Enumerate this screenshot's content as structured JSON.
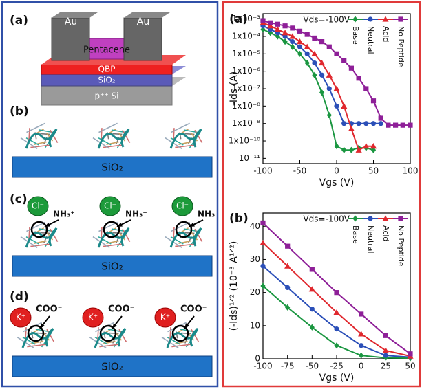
{
  "schematic": {
    "a": {
      "label": "(a)",
      "au_left": "Au",
      "au_right": "Au",
      "pentacene": "Pentacene",
      "qbp": "QBP",
      "sio2": "SiO₂",
      "si": "p⁺⁺ Si"
    },
    "b": {
      "label": "(b)",
      "sio2": "SiO₂"
    },
    "c": {
      "label": "(c)",
      "ions": [
        "Cl⁻",
        "Cl⁻",
        "Cl⁻"
      ],
      "groups": [
        "NH₃⁺",
        "NH₃⁺",
        "NH₃"
      ],
      "sio2": "SiO₂"
    },
    "d": {
      "label": "(d)",
      "ions": [
        "K⁺",
        "K⁺",
        "K⁺"
      ],
      "groups": [
        "COO⁻",
        "COO⁻",
        "COO⁻"
      ],
      "sio2": "SiO₂"
    }
  },
  "chart_data": [
    {
      "type": "line",
      "panel_label": "(a)",
      "annotation": "Vds=-100V",
      "xlabel": "Vgs (V)",
      "ylabel": "-Ids (A)",
      "ylog": true,
      "x": [
        -100,
        -90,
        -80,
        -70,
        -60,
        -50,
        -40,
        -30,
        -20,
        -10,
        0,
        10,
        20,
        30,
        40,
        50,
        60,
        70,
        80,
        90,
        100
      ],
      "xlim": [
        -100,
        100
      ],
      "xticks": [
        -100,
        -50,
        0,
        50,
        100
      ],
      "ylim": [
        5e-12,
        0.002
      ],
      "yticks": [
        {
          "value": 1e-11,
          "label": "10⁻¹¹"
        },
        {
          "value": 1e-10,
          "label": "1x10⁻¹⁰"
        },
        {
          "value": 1e-09,
          "label": "1x10⁻⁹"
        },
        {
          "value": 1e-08,
          "label": "1x10⁻⁸"
        },
        {
          "value": 1e-07,
          "label": "1x10⁻⁷"
        },
        {
          "value": 1e-06,
          "label": "1x10⁻⁶"
        },
        {
          "value": 1e-05,
          "label": "1x10⁻⁵"
        },
        {
          "value": 0.0001,
          "label": "1x10⁻⁴"
        },
        {
          "value": 0.001,
          "label": "1x10⁻³"
        }
      ],
      "series": [
        {
          "name": "Base",
          "color": "#1a9640",
          "marker": "diamond",
          "values": [
            0.00025,
            0.00016,
            0.0001,
            5e-05,
            2.5e-05,
            1e-05,
            3e-06,
            6e-07,
            6e-08,
            3e-09,
            5e-11,
            3e-11,
            3e-11,
            4e-11,
            4e-11,
            3e-11,
            null,
            null,
            null,
            null,
            null
          ]
        },
        {
          "name": "Neutral",
          "color": "#2b4fb8",
          "marker": "circle",
          "values": [
            0.0004,
            0.00025,
            0.00016,
            0.0001,
            5e-05,
            2.5e-05,
            1e-05,
            3e-06,
            6e-07,
            1e-07,
            1e-08,
            1e-09,
            1e-09,
            1e-09,
            1e-09,
            1e-09,
            1e-09,
            null,
            null,
            null,
            null
          ]
        },
        {
          "name": "Acid",
          "color": "#e0282e",
          "marker": "triangle",
          "values": [
            0.0006,
            0.0004,
            0.00025,
            0.00016,
            0.0001,
            5e-05,
            2.5e-05,
            1e-05,
            3e-06,
            6e-07,
            1e-07,
            1e-08,
            5e-10,
            3e-11,
            5e-11,
            5e-11,
            null,
            null,
            null,
            null,
            null
          ]
        },
        {
          "name": "No Peptide",
          "color": "#8e1f98",
          "marker": "square",
          "values": [
            0.0008,
            0.0006,
            0.0005,
            0.0004,
            0.0003,
            0.0002,
            0.00013,
            8e-05,
            5e-05,
            2.5e-05,
            1e-05,
            4e-06,
            1.5e-06,
            4e-07,
            1e-07,
            2e-08,
            2e-09,
            8e-10,
            8e-10,
            8e-10,
            8e-10
          ]
        }
      ]
    },
    {
      "type": "line",
      "panel_label": "(b)",
      "annotation": "Vds=-100V",
      "xlabel": "Vgs (V)",
      "ylabel": "(-Ids)¹ᐟ² (10⁻³ A¹ᐟ²)",
      "ylog": false,
      "x": [
        -100,
        -75,
        -50,
        -25,
        0,
        25,
        50
      ],
      "xlim": [
        -100,
        50
      ],
      "xticks": [
        -100,
        -75,
        -50,
        -25,
        0,
        25,
        50
      ],
      "ylim": [
        0,
        44
      ],
      "yticks": [
        0,
        10,
        20,
        30,
        40
      ],
      "series": [
        {
          "name": "Base",
          "color": "#1a9640",
          "marker": "diamond",
          "values": [
            22,
            15.5,
            9.5,
            4,
            1,
            0.3,
            0.2
          ]
        },
        {
          "name": "Neutral",
          "color": "#2b4fb8",
          "marker": "circle",
          "values": [
            28,
            21.5,
            15,
            9,
            4,
            1,
            0.5
          ]
        },
        {
          "name": "Acid",
          "color": "#e0282e",
          "marker": "triangle",
          "values": [
            35,
            28,
            21,
            14,
            7.5,
            2.5,
            0.8
          ]
        },
        {
          "name": "No Peptide",
          "color": "#8e1f98",
          "marker": "square",
          "values": [
            41,
            34,
            27,
            20,
            13.5,
            7,
            1.5
          ]
        }
      ]
    }
  ]
}
